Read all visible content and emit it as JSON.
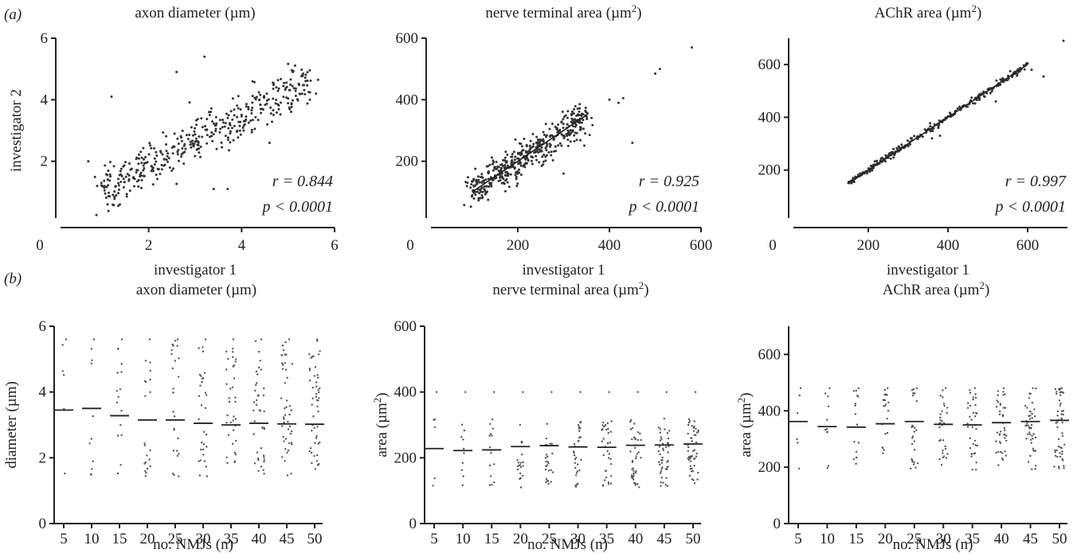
{
  "panel_labels": {
    "a": "(a)",
    "b": "(b)"
  },
  "chart_data": [
    {
      "type": "scatter",
      "panel": "a",
      "title": "axon diameter (µm)",
      "title_sup": "",
      "xlabel": "investigator 1",
      "ylabel": "investigator 2",
      "xlim": [
        0,
        6
      ],
      "ylim": [
        0,
        6
      ],
      "xticks": [
        "0",
        "2",
        "4",
        "6"
      ],
      "yticks": [
        "2",
        "4",
        "6"
      ],
      "stats": {
        "r": "r = 0.844",
        "p": "p < 0.0001"
      },
      "trend": {
        "x": [
          1.0,
          5.5
        ],
        "y": [
          1.1,
          4.6
        ]
      },
      "n_points": 420,
      "spread": 0.35,
      "points_sample": [
        [
          0.7,
          2.0
        ],
        [
          1.2,
          4.1
        ],
        [
          1.0,
          1.2
        ],
        [
          3.2,
          5.4
        ],
        [
          5.1,
          4.9
        ],
        [
          5.6,
          4.2
        ],
        [
          3.7,
          1.1
        ],
        [
          3.4,
          1.1
        ],
        [
          4.6,
          2.6
        ],
        [
          2.6,
          4.9
        ]
      ]
    },
    {
      "type": "scatter",
      "panel": "a",
      "title": "nerve terminal area (µm",
      "title_sup": "2",
      "xlabel": "investigator 1",
      "ylabel": "",
      "xlim": [
        0,
        600
      ],
      "ylim": [
        0,
        600
      ],
      "xticks": [
        "0",
        "200",
        "400",
        "600"
      ],
      "yticks": [
        "200",
        "400",
        "600"
      ],
      "stats": {
        "r": "r = 0.925",
        "p": "p < 0.0001"
      },
      "trend": {
        "x": [
          100,
          350
        ],
        "y": [
          100,
          350
        ]
      },
      "n_points": 460,
      "spread": 28,
      "points_sample": [
        [
          580,
          570
        ],
        [
          510,
          500
        ],
        [
          500,
          485
        ],
        [
          450,
          260
        ],
        [
          420,
          390
        ],
        [
          400,
          400
        ],
        [
          90,
          130
        ],
        [
          430,
          405
        ],
        [
          300,
          160
        ]
      ]
    },
    {
      "type": "scatter",
      "panel": "a",
      "title": "AChR area (µm",
      "title_sup": "2",
      "xlabel": "investigator 1",
      "ylabel": "",
      "xlim": [
        0,
        700
      ],
      "ylim": [
        0,
        700
      ],
      "xticks": [
        "0",
        "200",
        "400",
        "600"
      ],
      "yticks": [
        "200",
        "400",
        "600"
      ],
      "stats": {
        "r": "r = 0.997",
        "p": "p < 0.0001"
      },
      "trend": {
        "x": [
          150,
          600
        ],
        "y": [
          150,
          600
        ]
      },
      "n_points": 300,
      "spread": 6,
      "points_sample": [
        [
          690,
          690
        ],
        [
          640,
          555
        ],
        [
          610,
          580
        ],
        [
          520,
          460
        ],
        [
          380,
          330
        ],
        [
          360,
          320
        ]
      ]
    },
    {
      "type": "dot_strip",
      "panel": "b",
      "title": "axon diameter (µm)",
      "title_sup": "",
      "xlabel": "no. NMJs (n)",
      "ylabel": "diameter (µm)",
      "ylabel_sup": "",
      "categories": [
        "5",
        "10",
        "15",
        "20",
        "25",
        "30",
        "35",
        "40",
        "45",
        "50"
      ],
      "ylim": [
        0,
        6
      ],
      "yticks": [
        "0",
        "2",
        "4",
        "6"
      ],
      "means": [
        3.45,
        3.5,
        3.28,
        3.15,
        3.15,
        3.05,
        3.0,
        3.05,
        3.03,
        3.02
      ],
      "range": [
        1.4,
        5.6
      ],
      "max_point": 5.6
    },
    {
      "type": "dot_strip",
      "panel": "b",
      "title": "nerve terminal area (µm",
      "title_sup": "2",
      "xlabel": "no. NMJs (n)",
      "ylabel": "area (µm",
      "ylabel_sup": "2",
      "categories": [
        "5",
        "10",
        "15",
        "20",
        "25",
        "30",
        "35",
        "40",
        "45",
        "50"
      ],
      "ylim": [
        0,
        600
      ],
      "yticks": [
        "0",
        "200",
        "400",
        "600"
      ],
      "means": [
        228,
        222,
        224,
        234,
        237,
        233,
        232,
        238,
        239,
        242
      ],
      "range": [
        110,
        320
      ],
      "max_point": 400
    },
    {
      "type": "dot_strip",
      "panel": "b",
      "title": "AChR area (µm",
      "title_sup": "2",
      "xlabel": "no. NMJs (n)",
      "ylabel": "area (µm",
      "ylabel_sup": "2",
      "categories": [
        "5",
        "10",
        "15",
        "20",
        "25",
        "30",
        "35",
        "40",
        "45",
        "50"
      ],
      "ylim": [
        0,
        700
      ],
      "yticks": [
        "0",
        "200",
        "400",
        "600"
      ],
      "means": [
        362,
        344,
        342,
        354,
        362,
        352,
        350,
        358,
        362,
        366
      ],
      "range": [
        190,
        480
      ],
      "max_point": 480
    }
  ]
}
